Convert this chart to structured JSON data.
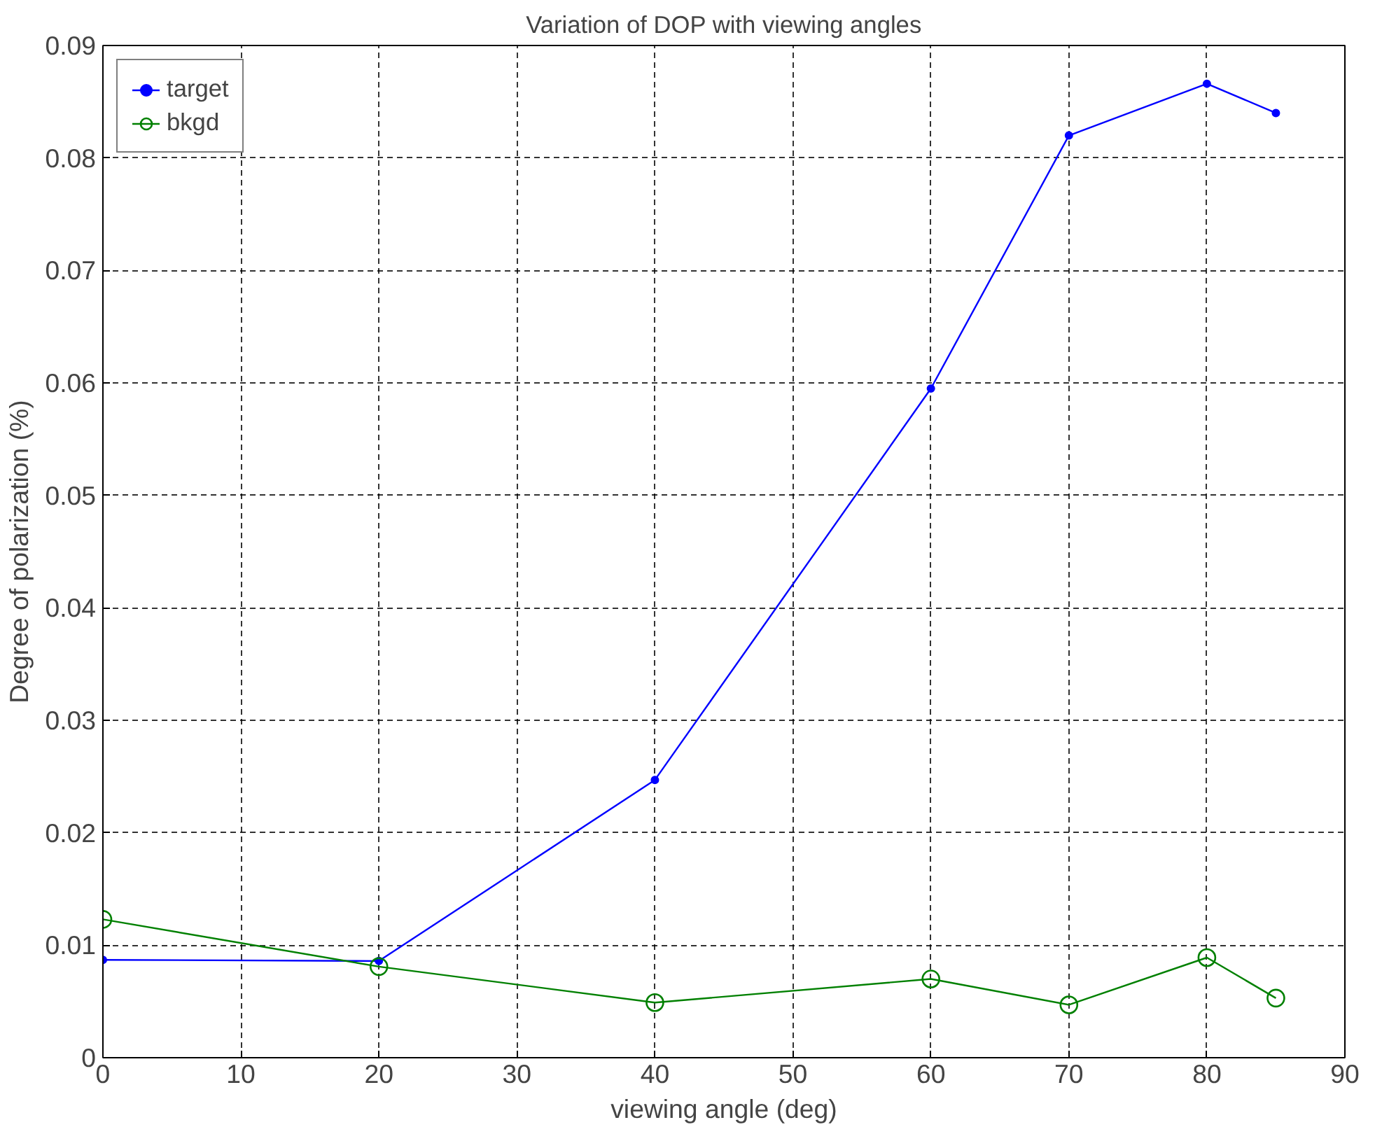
{
  "chart_data": {
    "type": "line",
    "title": "Variation of DOP with viewing angles",
    "xlabel": "viewing angle (deg)",
    "ylabel": "Degree of polarization (%)",
    "x": [
      0,
      20,
      40,
      60,
      70,
      80,
      85
    ],
    "series": [
      {
        "name": "target",
        "color": "#0000ff",
        "marker": "circle",
        "values": [
          0.0087,
          0.0086,
          0.0247,
          0.0595,
          0.082,
          0.0866,
          0.084
        ]
      },
      {
        "name": "bkgd",
        "color": "#008000",
        "marker": "open_circle",
        "values": [
          0.0123,
          0.0081,
          0.0049,
          0.007,
          0.0047,
          0.0089,
          0.0053
        ]
      }
    ],
    "xlim": [
      0,
      90
    ],
    "ylim": [
      0,
      0.09
    ],
    "xticks": [
      0,
      10,
      20,
      30,
      40,
      50,
      60,
      70,
      80,
      90
    ],
    "yticks": [
      {
        "value": 0,
        "label": "0"
      },
      {
        "value": 0.01,
        "label": "0.01"
      },
      {
        "value": 0.02,
        "label": "0.02"
      },
      {
        "value": 0.03,
        "label": "0.03"
      },
      {
        "value": 0.04,
        "label": "0.04"
      },
      {
        "value": 0.05,
        "label": "0.05"
      },
      {
        "value": 0.06,
        "label": "0.06"
      },
      {
        "value": 0.07,
        "label": "0.07"
      },
      {
        "value": 0.08,
        "label": "0.08"
      },
      {
        "value": 0.09,
        "label": "0.09"
      }
    ],
    "grid": true,
    "legend": "top left",
    "line_style": "solid"
  }
}
